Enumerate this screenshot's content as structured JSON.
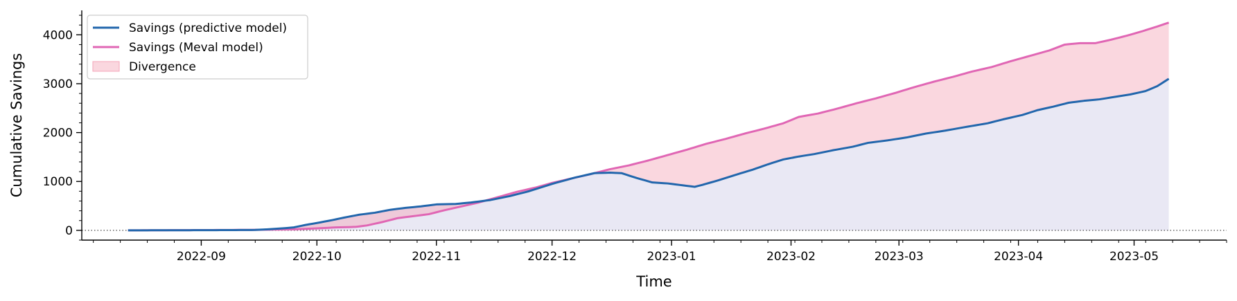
{
  "chart_data": {
    "type": "area",
    "xlabel": "Time",
    "ylabel": "Cumulative Savings",
    "xlim": [
      "2022-08-01",
      "2023-05-25"
    ],
    "ylim": [
      -200,
      4500
    ],
    "x_ticks": [
      "2022-09-01",
      "2022-10-01",
      "2022-11-01",
      "2022-12-01",
      "2023-01-01",
      "2023-02-01",
      "2023-03-01",
      "2023-04-01",
      "2023-05-01"
    ],
    "x_tick_labels": [
      "2022-09",
      "2022-10",
      "2022-11",
      "2022-12",
      "2023-01",
      "2023-02",
      "2023-03",
      "2023-04",
      "2023-05"
    ],
    "y_ticks": [
      0,
      1000,
      2000,
      3000,
      4000
    ],
    "y_tick_labels": [
      "0",
      "1000",
      "2000",
      "3000",
      "4000"
    ],
    "reference_line": {
      "y": 0,
      "style": "dotted"
    },
    "legend_position": "upper-left",
    "series": [
      {
        "name": "Savings (predictive model)",
        "color": "#2166ac",
        "x": [
          "2022-08-13",
          "2022-08-27",
          "2022-09-08",
          "2022-09-15",
          "2022-09-18",
          "2022-09-22",
          "2022-09-25",
          "2022-09-28",
          "2022-10-01",
          "2022-10-05",
          "2022-10-08",
          "2022-10-12",
          "2022-10-16",
          "2022-10-20",
          "2022-10-24",
          "2022-10-28",
          "2022-11-01",
          "2022-11-06",
          "2022-11-10",
          "2022-11-15",
          "2022-11-20",
          "2022-11-25",
          "2022-12-01",
          "2022-12-07",
          "2022-12-12",
          "2022-12-16",
          "2022-12-19",
          "2022-12-23",
          "2022-12-27",
          "2022-12-31",
          "2023-01-03",
          "2023-01-07",
          "2023-01-09",
          "2023-01-13",
          "2023-01-17",
          "2023-01-22",
          "2023-01-26",
          "2023-01-30",
          "2023-02-03",
          "2023-02-07",
          "2023-02-12",
          "2023-02-17",
          "2023-02-21",
          "2023-02-26",
          "2023-03-03",
          "2023-03-08",
          "2023-03-13",
          "2023-03-18",
          "2023-03-24",
          "2023-03-28",
          "2023-04-02",
          "2023-04-06",
          "2023-04-10",
          "2023-04-14",
          "2023-04-18",
          "2023-04-22",
          "2023-04-26",
          "2023-04-30",
          "2023-05-04",
          "2023-05-07",
          "2023-05-10"
        ],
        "values": [
          0,
          2,
          5,
          8,
          20,
          40,
          60,
          110,
          150,
          210,
          260,
          320,
          360,
          420,
          460,
          490,
          530,
          540,
          570,
          620,
          700,
          800,
          950,
          1080,
          1170,
          1180,
          1170,
          1070,
          980,
          960,
          930,
          890,
          930,
          1020,
          1120,
          1240,
          1350,
          1450,
          1510,
          1560,
          1640,
          1710,
          1790,
          1840,
          1900,
          1980,
          2040,
          2110,
          2190,
          2270,
          2360,
          2460,
          2530,
          2610,
          2650,
          2680,
          2730,
          2780,
          2850,
          2950,
          3100
        ]
      },
      {
        "name": "Savings (Meval model)",
        "color": "#e066b4",
        "x": [
          "2022-08-13",
          "2022-09-01",
          "2022-09-15",
          "2022-09-25",
          "2022-10-01",
          "2022-10-06",
          "2022-10-11",
          "2022-10-14",
          "2022-10-18",
          "2022-10-22",
          "2022-10-26",
          "2022-10-30",
          "2022-11-03",
          "2022-11-07",
          "2022-11-12",
          "2022-11-17",
          "2022-11-22",
          "2022-11-27",
          "2022-12-01",
          "2022-12-06",
          "2022-12-11",
          "2022-12-16",
          "2022-12-21",
          "2022-12-26",
          "2022-12-31",
          "2023-01-05",
          "2023-01-10",
          "2023-01-15",
          "2023-01-20",
          "2023-01-25",
          "2023-01-30",
          "2023-02-03",
          "2023-02-08",
          "2023-02-13",
          "2023-02-18",
          "2023-02-23",
          "2023-02-28",
          "2023-03-05",
          "2023-03-10",
          "2023-03-15",
          "2023-03-20",
          "2023-03-25",
          "2023-03-30",
          "2023-04-04",
          "2023-04-09",
          "2023-04-13",
          "2023-04-17",
          "2023-04-21",
          "2023-04-25",
          "2023-04-29",
          "2023-05-03",
          "2023-05-07",
          "2023-05-10"
        ],
        "values": [
          0,
          5,
          10,
          20,
          40,
          60,
          70,
          100,
          170,
          250,
          290,
          330,
          410,
          480,
          570,
          680,
          790,
          880,
          970,
          1060,
          1150,
          1250,
          1330,
          1430,
          1540,
          1650,
          1770,
          1870,
          1980,
          2080,
          2190,
          2320,
          2390,
          2490,
          2600,
          2700,
          2810,
          2930,
          3040,
          3140,
          3250,
          3340,
          3460,
          3570,
          3680,
          3800,
          3830,
          3830,
          3900,
          3980,
          4070,
          4170,
          4250
        ]
      }
    ],
    "fill_regions": [
      {
        "name": "Divergence",
        "between": [
          "Savings (predictive model)",
          "Savings (Meval model)"
        ],
        "color": "#f4a6b8"
      },
      {
        "name": "",
        "between_baseline": "Savings (predictive model)",
        "baseline": 0,
        "color": "#cfcbe6"
      }
    ],
    "legend": [
      {
        "label": "Savings (predictive model)",
        "kind": "line",
        "color": "#2166ac"
      },
      {
        "label": "Savings (Meval model)",
        "kind": "line",
        "color": "#e066b4"
      },
      {
        "label": "Divergence",
        "kind": "patch",
        "color": "#f4a6b8"
      }
    ]
  }
}
